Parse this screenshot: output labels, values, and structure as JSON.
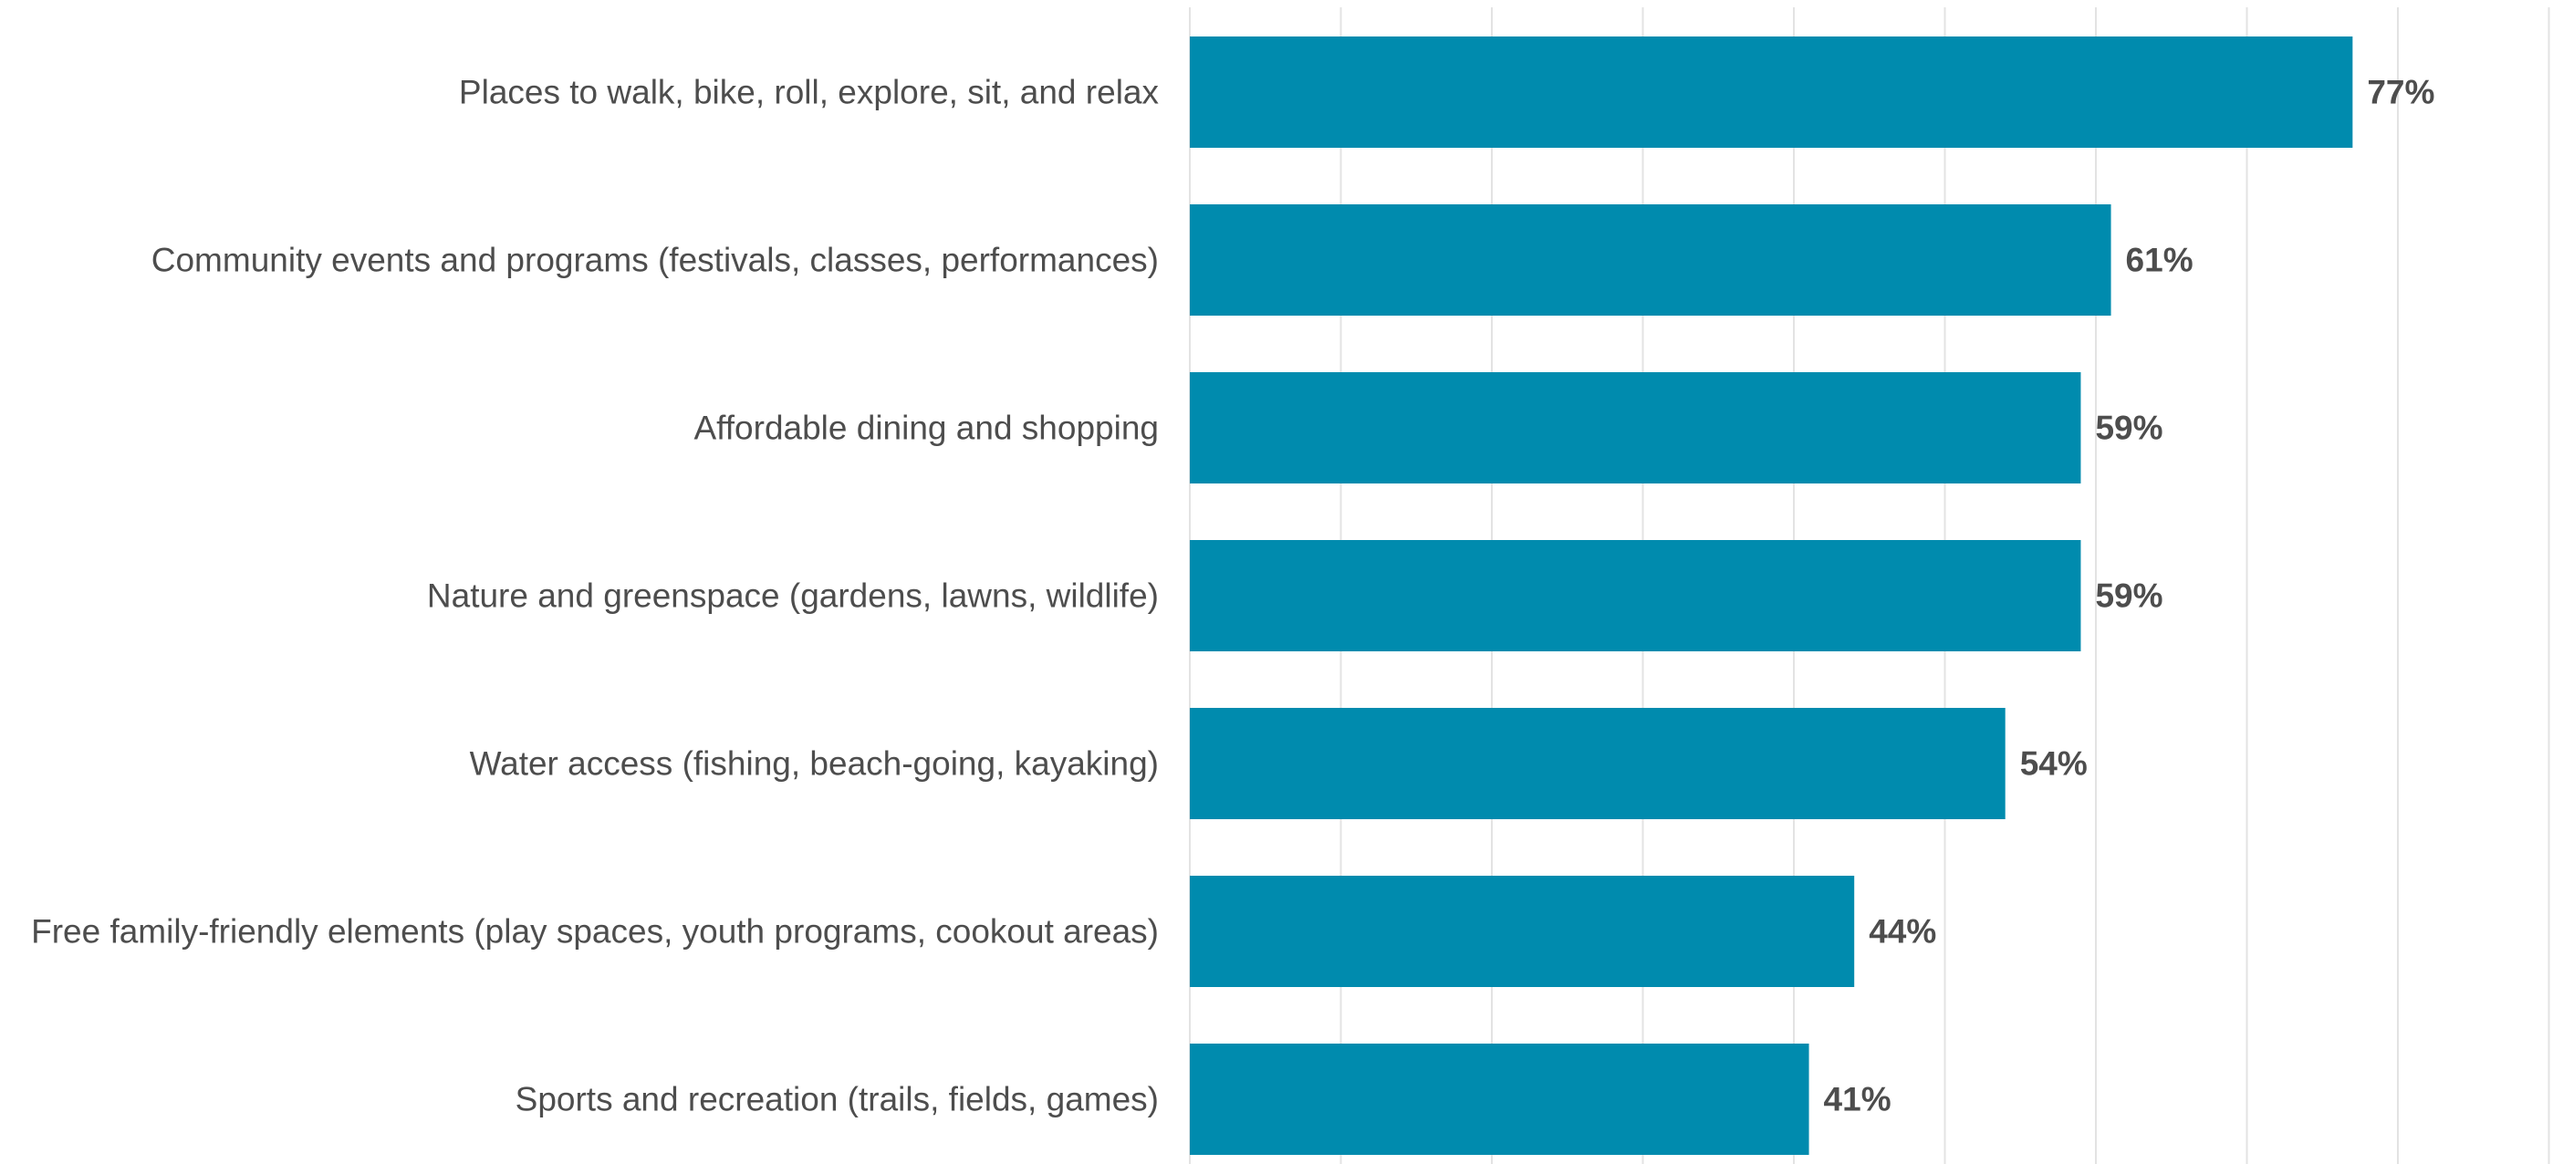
{
  "chart_data": {
    "type": "bar",
    "orientation": "horizontal",
    "categories": [
      "Places to walk, bike, roll, explore, sit, and relax",
      "Community events and programs (festivals, classes, performances)",
      "Affordable dining and shopping",
      "Nature and greenspace (gardens, lawns, wildlife)",
      "Water access (fishing, beach-going, kayaking)",
      "Free family-friendly elements (play spaces, youth programs, cookout areas)",
      "Sports and recreation (trails, fields, games)"
    ],
    "values": [
      77,
      61,
      59,
      59,
      54,
      44,
      41
    ],
    "value_labels": [
      "77%",
      "61%",
      "59%",
      "59%",
      "54%",
      "44%",
      "41%"
    ],
    "xlim": [
      0,
      90
    ],
    "grid": true,
    "grid_step": 10,
    "bar_color": "#008bae",
    "title": "",
    "xlabel": "",
    "ylabel": ""
  }
}
